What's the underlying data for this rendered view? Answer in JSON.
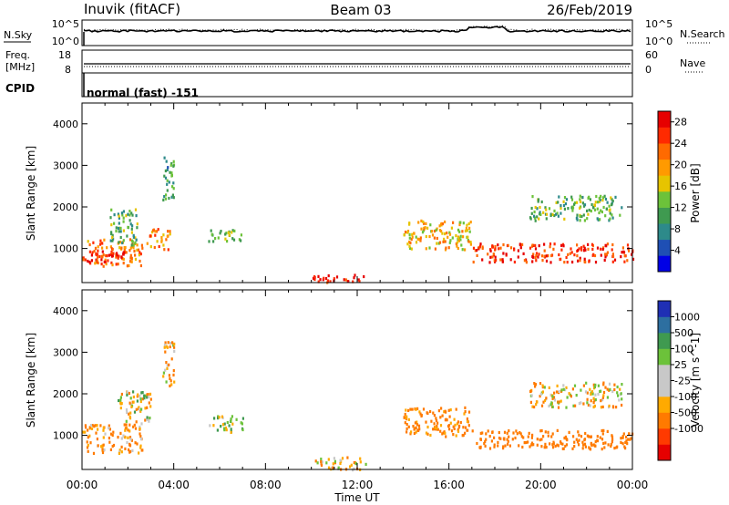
{
  "header": {
    "station": "Inuvik  (fitACF)",
    "beam": "Beam 03",
    "date": "26/Feb/2019"
  },
  "noise_panel": {
    "left_label": "N.Sky",
    "left_ticks": [
      "10^5",
      "10^0"
    ],
    "right_label": "N.Search",
    "right_ticks": [
      "10^5",
      "10^0"
    ]
  },
  "freq_panel": {
    "left_label_line1": "Freq.",
    "left_label_line2": "[MHz]",
    "left_ticks": [
      "18",
      "8"
    ],
    "right_label": "Nave",
    "right_ticks": [
      "60",
      "0"
    ]
  },
  "cpid": {
    "label": "CPID",
    "text": "normal (fast) -151"
  },
  "colors": {
    "power_scale": [
      "#0000e6",
      "#1f4fb4",
      "#2d8a8a",
      "#3f9a50",
      "#6cc23a",
      "#e6c400",
      "#ff9a00",
      "#ff6a00",
      "#ff2a00",
      "#e60000"
    ],
    "velocity_scale": [
      "#e60000",
      "#ff3a00",
      "#ff7a00",
      "#ffaa00",
      "#c8c8c8",
      "#c8c8c8",
      "#6cc23a",
      "#3f9a50",
      "#2d6fa0",
      "#1f2fb4"
    ]
  },
  "chart_data": [
    {
      "type": "heatmap",
      "title": "Power",
      "xlabel": "",
      "ylabel": "Slant Range [km]",
      "xlim": [
        "00:00",
        "00:00"
      ],
      "ylim": [
        180,
        4500
      ],
      "y_ticks": [
        "1000",
        "2000",
        "3000",
        "4000"
      ],
      "colorbar": {
        "label": "Power [dB]",
        "ticks": [
          "4",
          "8",
          "12",
          "16",
          "20",
          "24",
          "28"
        ],
        "range": [
          0,
          30
        ]
      },
      "scatter_bands": [
        {
          "hours": [
            0.0,
            2.6
          ],
          "range_km": [
            600,
            1250
          ],
          "value_db": 22
        },
        {
          "hours": [
            0.2,
            1.8
          ],
          "range_km": [
            700,
            1000
          ],
          "value_db": 28
        },
        {
          "hours": [
            1.2,
            2.4
          ],
          "range_km": [
            1100,
            2000
          ],
          "value_db": 12
        },
        {
          "hours": [
            2.8,
            3.8
          ],
          "range_km": [
            1000,
            1500
          ],
          "value_db": 20
        },
        {
          "hours": [
            3.5,
            4.0
          ],
          "range_km": [
            2200,
            3300
          ],
          "value_db": 10
        },
        {
          "hours": [
            5.5,
            7.0
          ],
          "range_km": [
            1200,
            1500
          ],
          "value_db": 14
        },
        {
          "hours": [
            10.0,
            12.4
          ],
          "range_km": [
            200,
            400
          ],
          "value_db": 28
        },
        {
          "hours": [
            14.0,
            17.0
          ],
          "range_km": [
            1000,
            1700
          ],
          "value_db": 18
        },
        {
          "hours": [
            17.0,
            24.0
          ],
          "range_km": [
            700,
            1150
          ],
          "value_db": 26
        },
        {
          "hours": [
            19.5,
            23.5
          ],
          "range_km": [
            1700,
            2300
          ],
          "value_db": 12
        }
      ]
    },
    {
      "type": "heatmap",
      "title": "Velocity",
      "xlabel": "Time UT",
      "ylabel": "Slant Range [km]",
      "x_ticks": [
        "00:00",
        "04:00",
        "08:00",
        "12:00",
        "16:00",
        "20:00",
        "00:00"
      ],
      "y_ticks": [
        "1000",
        "2000",
        "3000",
        "4000"
      ],
      "ylim": [
        180,
        4500
      ],
      "colorbar": {
        "label": "Velocity [m s^-1]",
        "ticks": [
          "1000",
          "500",
          "100",
          "25",
          "-25",
          "-100",
          "-500",
          "-1000"
        ]
      },
      "scatter_bands": [
        {
          "hours": [
            0.0,
            2.6
          ],
          "range_km": [
            600,
            1300
          ],
          "value_ms": -150
        },
        {
          "hours": [
            1.5,
            3.0
          ],
          "range_km": [
            1300,
            2100
          ],
          "value_ms": 0
        },
        {
          "hours": [
            3.5,
            4.0
          ],
          "range_km": [
            2200,
            3300
          ],
          "value_ms": -80
        },
        {
          "hours": [
            5.5,
            7.0
          ],
          "range_km": [
            1100,
            1500
          ],
          "value_ms": 60
        },
        {
          "hours": [
            10.0,
            12.4
          ],
          "range_km": [
            200,
            500
          ],
          "value_ms": -50
        },
        {
          "hours": [
            14.0,
            17.0
          ],
          "range_km": [
            1000,
            1700
          ],
          "value_ms": -200
        },
        {
          "hours": [
            17.0,
            24.0
          ],
          "range_km": [
            700,
            1150
          ],
          "value_ms": -250
        },
        {
          "hours": [
            19.5,
            23.5
          ],
          "range_km": [
            1700,
            2300
          ],
          "value_ms": -60
        }
      ]
    }
  ]
}
